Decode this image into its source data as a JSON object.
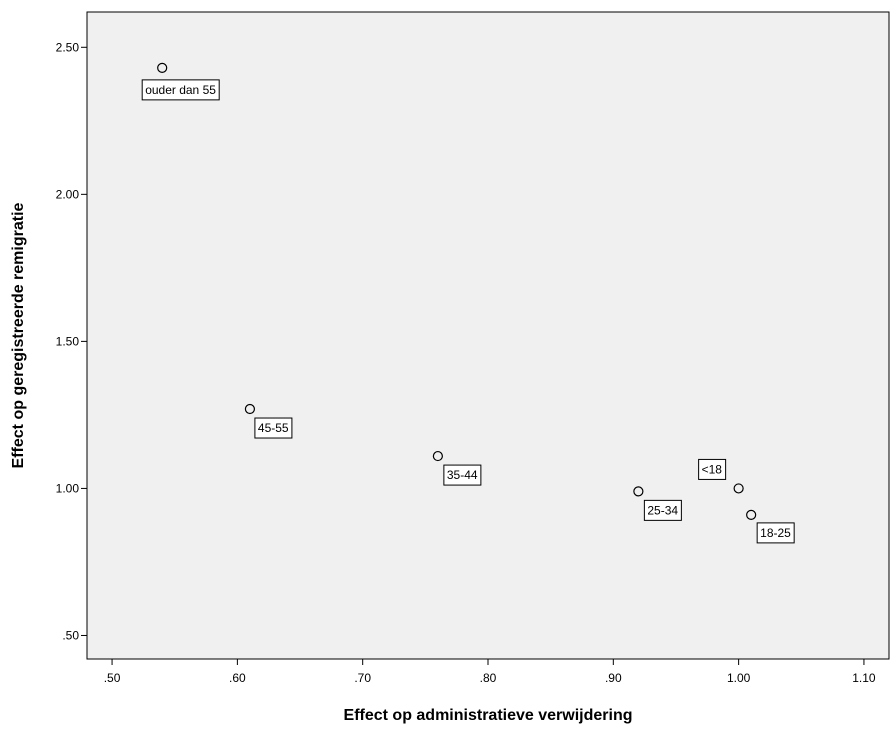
{
  "chart_data": {
    "type": "scatter",
    "xlabel": "Effect op administratieve verwijdering",
    "ylabel": "Effect op geregistreerde remigratie",
    "xlim": [
      0.48,
      1.12
    ],
    "ylim": [
      0.42,
      2.62
    ],
    "x_ticks": [
      0.5,
      0.6,
      0.7,
      0.8,
      0.9,
      1.0,
      1.1
    ],
    "x_tick_labels": [
      ".50",
      ".60",
      ".70",
      ".80",
      ".90",
      "1.00",
      "1.10"
    ],
    "y_ticks": [
      0.5,
      1.0,
      1.5,
      2.0,
      2.5
    ],
    "y_tick_labels": [
      ".50",
      "1.00",
      "1.50",
      "2.00",
      "2.50"
    ],
    "grid": false,
    "points": [
      {
        "label": "ouder dan 55",
        "x": 0.54,
        "y": 2.43
      },
      {
        "label": "45-55",
        "x": 0.61,
        "y": 1.27
      },
      {
        "label": "35-44",
        "x": 0.76,
        "y": 1.11
      },
      {
        "label": "25-34",
        "x": 0.92,
        "y": 0.99
      },
      {
        "label": "<18",
        "x": 1.0,
        "y": 1.0
      },
      {
        "label": "18-25",
        "x": 1.01,
        "y": 0.91
      }
    ],
    "colors": {
      "plot_background": "#f0f0f0",
      "marker_stroke": "#000000",
      "marker_fill": "#f0f0f0",
      "label_box_fill": "#ffffff"
    }
  }
}
